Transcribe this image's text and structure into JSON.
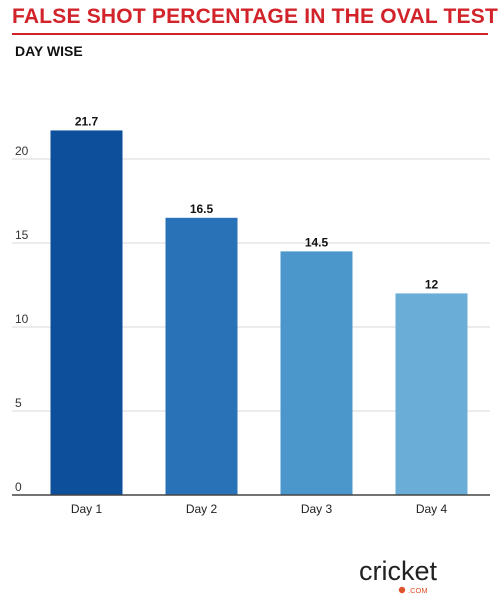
{
  "header": {
    "title": "FALSE SHOT PERCENTAGE IN THE OVAL TEST",
    "subtitle": "DAY WISE"
  },
  "chart_data": {
    "type": "bar",
    "title": "FALSE SHOT PERCENTAGE IN THE OVAL TEST",
    "subtitle": "DAY WISE",
    "categories": [
      "Day 1",
      "Day 2",
      "Day 3",
      "Day 4"
    ],
    "values": [
      21.7,
      16.5,
      14.5,
      12
    ],
    "data_labels": [
      "21.7",
      "16.5",
      "14.5",
      "12"
    ],
    "bar_colors": [
      "#0d4f9b",
      "#2a72b8",
      "#4b97cc",
      "#6aaed8"
    ],
    "yticks": [
      0,
      5,
      10,
      15,
      20
    ],
    "ylim": [
      0,
      22.7
    ],
    "grid": true,
    "xlabel": "",
    "ylabel": ""
  },
  "brand": {
    "logo_text": "cricket",
    "logo_sub": ".COM",
    "logo_color": "#e0522b"
  }
}
